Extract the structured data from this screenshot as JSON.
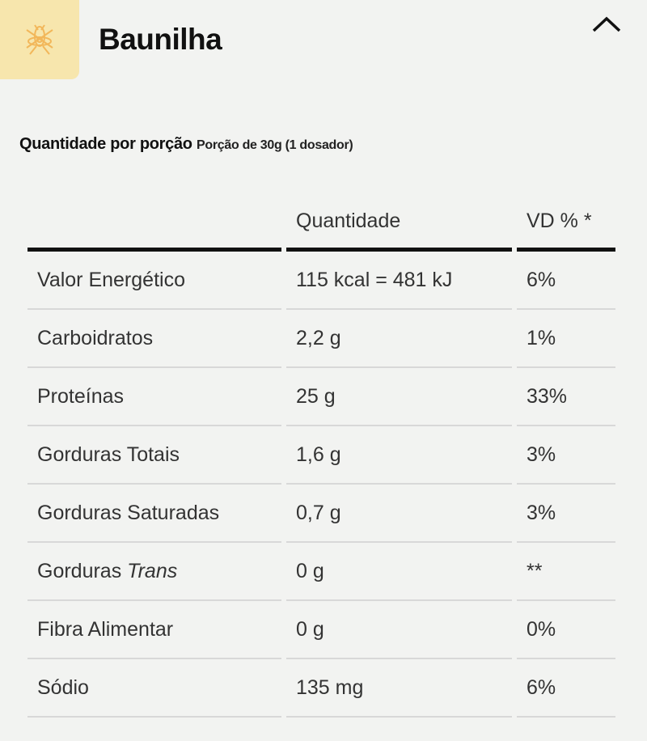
{
  "header": {
    "title": "Baunilha",
    "icon": "vanilla-flower-icon",
    "collapse_icon": "chevron-up-icon"
  },
  "serving": {
    "label": "Quantidade por porção",
    "detail": "Porção de 30g (1 dosador)"
  },
  "table": {
    "headers": [
      "",
      "Quantidade",
      "VD % *"
    ],
    "rows": [
      {
        "name": "Valor Energético",
        "qty": "115 kcal = 481 kJ",
        "vd": "6%"
      },
      {
        "name": "Carboidratos",
        "qty": "2,2 g",
        "vd": "1%"
      },
      {
        "name": "Proteínas",
        "qty": "25 g",
        "vd": "33%"
      },
      {
        "name": "Gorduras Totais",
        "qty": "1,6 g",
        "vd": "3%"
      },
      {
        "name": "Gorduras Saturadas",
        "qty": "0,7 g",
        "vd": "3%"
      },
      {
        "name": "Gorduras ",
        "name_italic": "Trans",
        "qty": "0 g",
        "vd": "**"
      },
      {
        "name": "Fibra Alimentar",
        "qty": "0 g",
        "vd": "0%"
      },
      {
        "name": "Sódio",
        "qty": "135 mg",
        "vd": "6%"
      }
    ]
  }
}
